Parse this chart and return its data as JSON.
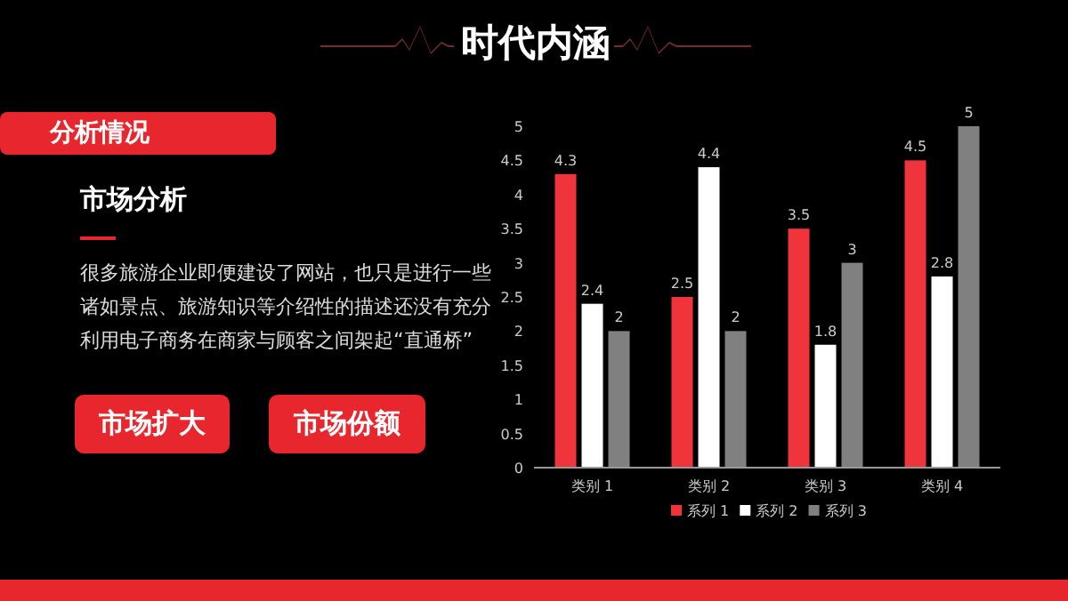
{
  "chart_data": {
    "type": "bar",
    "title": "时代内涵",
    "categories": [
      "类别 1",
      "类别 2",
      "类别 3",
      "类别 4"
    ],
    "series": [
      {
        "name": "系列 1",
        "color": "#f0343c",
        "values": [
          4.3,
          2.5,
          3.5,
          4.5
        ]
      },
      {
        "name": "系列 2",
        "color": "#ffffff",
        "values": [
          2.4,
          4.4,
          1.8,
          2.8
        ]
      },
      {
        "name": "系列 3",
        "color": "#808080",
        "values": [
          2,
          2,
          3,
          5
        ]
      }
    ],
    "ylim": [
      0,
      5
    ],
    "yticks": [
      0,
      0.5,
      1,
      1.5,
      2,
      2.5,
      3,
      3.5,
      4,
      4.5,
      5
    ],
    "grid": false,
    "legend": "bottom",
    "data_labels": true,
    "annotations": [
      "分析情况",
      "市场分析",
      "很多旅游企业即便建设了网站，也只是进行一些诸如景点、旅游知识等介绍性的描述还没有充分利用电子商务在商家与顾客之间架起“直通桥”",
      "市场扩大",
      "市场份额"
    ]
  }
}
